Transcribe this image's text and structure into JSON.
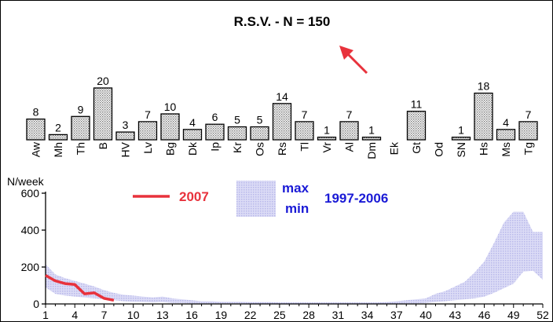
{
  "chart_data": [
    {
      "type": "bar",
      "title": "R.S.V. - N = 150",
      "categories": [
        "Aw",
        "Mh",
        "Th",
        "B",
        "HV",
        "Lv",
        "Bg",
        "Dk",
        "Ip",
        "Kr",
        "Os",
        "Rs",
        "Tl",
        "Vr",
        "Al",
        "Dm",
        "Ek",
        "Gt",
        "Od",
        "SN",
        "Hs",
        "Ms",
        "Tg"
      ],
      "values": [
        8,
        2,
        9,
        20,
        3,
        7,
        10,
        4,
        6,
        5,
        5,
        14,
        7,
        1,
        7,
        1,
        null,
        11,
        null,
        1,
        18,
        4,
        7
      ],
      "fill": "#d8d8d8",
      "annotation": {
        "type": "arrow",
        "color": "#e8323c"
      }
    },
    {
      "type": "area",
      "ylabel": "N/week",
      "ylim": [
        0,
        600
      ],
      "y_ticks": [
        0,
        200,
        400,
        600
      ],
      "xlim": [
        1,
        52
      ],
      "x_ticks": [
        1,
        4,
        7,
        10,
        13,
        16,
        19,
        22,
        25,
        28,
        31,
        34,
        37,
        40,
        43,
        46,
        49,
        52
      ],
      "legend": {
        "line_label": "2007",
        "band_label_max": "max",
        "band_label_min": "min",
        "band_period": "1997-2006"
      },
      "band": {
        "name": "1997-2006",
        "color": "#ccccf0",
        "x": [
          1,
          2,
          3,
          4,
          5,
          6,
          7,
          8,
          9,
          10,
          11,
          12,
          13,
          14,
          15,
          16,
          17,
          18,
          19,
          20,
          21,
          22,
          23,
          24,
          25,
          26,
          27,
          28,
          29,
          30,
          31,
          32,
          33,
          34,
          35,
          36,
          37,
          38,
          39,
          40,
          41,
          42,
          43,
          44,
          45,
          46,
          47,
          48,
          49,
          50,
          51,
          52
        ],
        "max": [
          215,
          160,
          140,
          125,
          110,
          95,
          75,
          60,
          50,
          45,
          40,
          35,
          40,
          30,
          25,
          20,
          15,
          15,
          12,
          12,
          12,
          10,
          10,
          10,
          8,
          8,
          8,
          8,
          8,
          8,
          8,
          8,
          8,
          8,
          8,
          10,
          15,
          20,
          25,
          30,
          55,
          70,
          95,
          120,
          170,
          230,
          330,
          440,
          500,
          500,
          390,
          390
        ],
        "min": [
          90,
          55,
          45,
          40,
          35,
          30,
          25,
          20,
          15,
          12,
          10,
          8,
          10,
          5,
          5,
          3,
          3,
          3,
          3,
          3,
          3,
          2,
          2,
          2,
          2,
          2,
          2,
          2,
          2,
          2,
          2,
          2,
          2,
          2,
          2,
          2,
          2,
          3,
          3,
          5,
          10,
          15,
          20,
          25,
          30,
          40,
          60,
          85,
          110,
          175,
          180,
          130
        ]
      },
      "series": [
        {
          "name": "2007",
          "color": "#e8323c",
          "x": [
            1,
            2,
            3,
            4,
            5,
            6,
            7,
            8
          ],
          "y": [
            155,
            125,
            110,
            105,
            55,
            60,
            30,
            20
          ]
        }
      ]
    }
  ]
}
